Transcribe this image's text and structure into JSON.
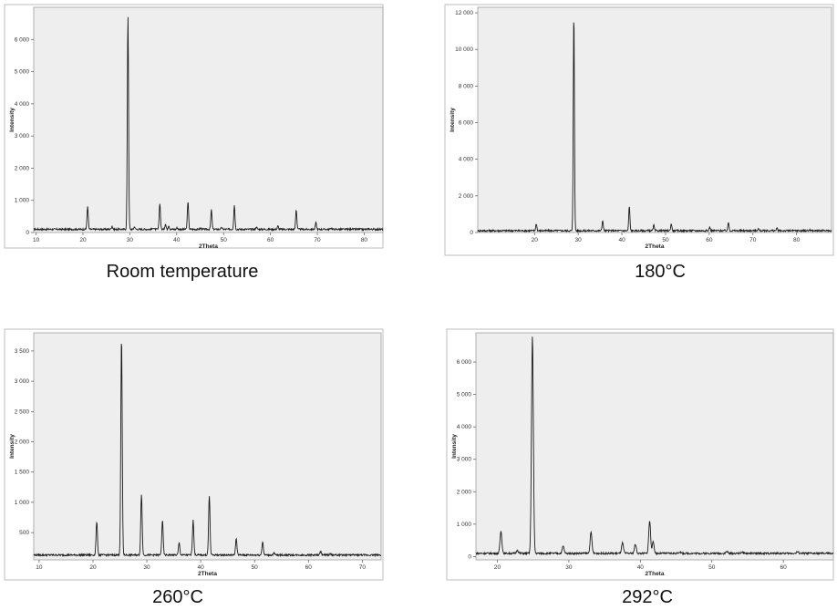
{
  "chart_data": [
    {
      "type": "line",
      "caption": "Room temperature",
      "xlabel": "2Theta",
      "ylabel": "Intensity",
      "xlim": [
        9.5,
        84
      ],
      "ylim": [
        0,
        7000
      ],
      "xticks": [
        "10",
        "20",
        "30",
        "40",
        "50",
        "60",
        "70",
        "80"
      ],
      "yticks": [
        "0",
        "1 000",
        "2 000",
        "3 000",
        "4 000",
        "5 000",
        "6 000"
      ],
      "baseline": 100,
      "peaks": [
        [
          21.0,
          820
        ],
        [
          26.2,
          200
        ],
        [
          29.6,
          6750
        ],
        [
          31.0,
          180
        ],
        [
          35.0,
          150
        ],
        [
          36.4,
          920
        ],
        [
          37.6,
          260
        ],
        [
          38.3,
          220
        ],
        [
          40.1,
          150
        ],
        [
          42.4,
          960
        ],
        [
          45.1,
          140
        ],
        [
          47.4,
          700
        ],
        [
          49.6,
          150
        ],
        [
          52.3,
          850
        ],
        [
          57.0,
          170
        ],
        [
          61.6,
          200
        ],
        [
          65.5,
          720
        ],
        [
          69.7,
          300
        ],
        [
          73.0,
          140
        ],
        [
          77.3,
          120
        ],
        [
          81.0,
          120
        ]
      ],
      "grid": false,
      "legend": "none"
    },
    {
      "type": "line",
      "caption": "180°C",
      "xlabel": "2Theta",
      "ylabel": "Intensity",
      "xlim": [
        7,
        88
      ],
      "ylim": [
        0,
        12300
      ],
      "xticks": [
        "20",
        "30",
        "40",
        "50",
        "60",
        "70",
        "80"
      ],
      "yticks": [
        "0",
        "2 000",
        "4 000",
        "6 000",
        "8 000",
        "10 000",
        "12 000"
      ],
      "baseline": 100,
      "peaks": [
        [
          20.4,
          480
        ],
        [
          29.0,
          12050
        ],
        [
          35.6,
          680
        ],
        [
          41.7,
          1450
        ],
        [
          47.3,
          400
        ],
        [
          51.3,
          480
        ],
        [
          60.1,
          300
        ],
        [
          64.4,
          550
        ],
        [
          71.2,
          220
        ],
        [
          75.5,
          230
        ],
        [
          83.0,
          150
        ]
      ],
      "grid": false,
      "legend": "none"
    },
    {
      "type": "line",
      "caption": "260°C",
      "xlabel": "2Theta",
      "ylabel": "Intensity",
      "xlim": [
        9,
        73.5
      ],
      "ylim": [
        50,
        3800
      ],
      "xticks": [
        "10",
        "20",
        "30",
        "40",
        "50",
        "60",
        "70"
      ],
      "yticks": [
        "500",
        "1 000",
        "1 500",
        "2 000",
        "2 500",
        "3 000",
        "3 500"
      ],
      "baseline": 130,
      "peaks": [
        [
          20.7,
          680
        ],
        [
          25.3,
          3720
        ],
        [
          29.0,
          1140
        ],
        [
          32.9,
          700
        ],
        [
          36.0,
          330
        ],
        [
          38.6,
          700
        ],
        [
          41.6,
          1110
        ],
        [
          46.6,
          400
        ],
        [
          51.5,
          350
        ],
        [
          53.6,
          160
        ],
        [
          62.3,
          190
        ],
        [
          64.0,
          150
        ]
      ],
      "grid": false,
      "legend": "none"
    },
    {
      "type": "line",
      "caption": "292°C",
      "xlabel": "2Theta",
      "ylabel": "Intensity",
      "xlim": [
        17,
        67
      ],
      "ylim": [
        -100,
        6900
      ],
      "xticks": [
        "20",
        "30",
        "40",
        "50",
        "60"
      ],
      "yticks": [
        "0",
        "1 000",
        "2 000",
        "3 000",
        "4 000",
        "5 000",
        "6 000"
      ],
      "baseline": 100,
      "peaks": [
        [
          20.5,
          780
        ],
        [
          22.8,
          200
        ],
        [
          24.9,
          6800
        ],
        [
          29.2,
          320
        ],
        [
          33.1,
          740
        ],
        [
          37.5,
          420
        ],
        [
          39.3,
          380
        ],
        [
          41.3,
          1100
        ],
        [
          41.8,
          450
        ],
        [
          45.5,
          150
        ],
        [
          52.1,
          160
        ],
        [
          54.2,
          140
        ],
        [
          62.0,
          150
        ]
      ],
      "grid": false,
      "legend": "none"
    }
  ]
}
